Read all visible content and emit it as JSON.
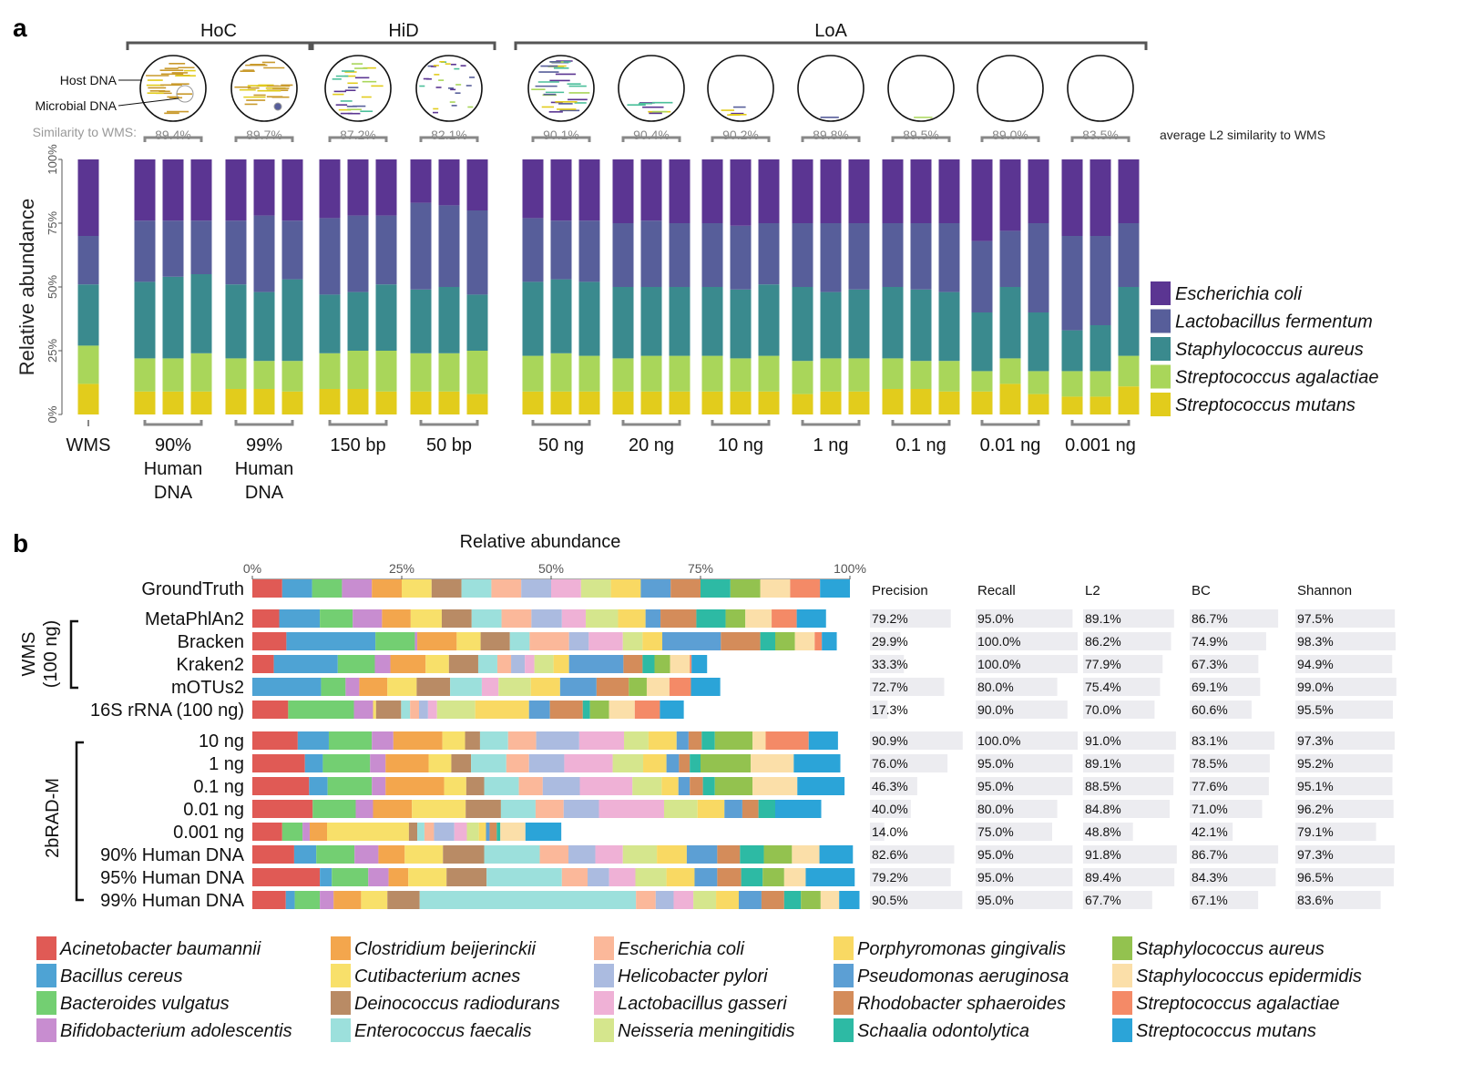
{
  "panel_a": {
    "letter": "a",
    "groups": [
      {
        "label": "HoC",
        "first": 1,
        "last": 2
      },
      {
        "label": "HiD",
        "first": 3,
        "last": 4
      },
      {
        "label": "LoA",
        "first": 5,
        "last": 11
      }
    ],
    "host_label": "Host DNA",
    "microbial_label": "Microbial DNA",
    "similarity_label": "Similarity to WMS:",
    "similarity_note": "average L2 similarity to WMS",
    "similarities": [
      "89.4%",
      "89.7%",
      "87.2%",
      "82.1%",
      "90.1%",
      "90.4%",
      "90.2%",
      "89.8%",
      "89.5%",
      "89.0%",
      "83.5%"
    ],
    "colors": {
      "Escherichia coli": "#5b3592",
      "Lactobacillus fermentum": "#575e9a",
      "Staphylococcus aureus": "#3a8a8e",
      "Streptococcus agalactiae": "#a9d65a",
      "Streptococcus mutans": "#e2cc1c"
    },
    "read_colors": [
      "#c99a2c",
      "#e2cc1c",
      "#5b3592",
      "#575e9a",
      "#4bbf9a",
      "#a9d65a"
    ]
  },
  "panel_b": {
    "letter": "b",
    "x_title": "Relative abundance",
    "x_ticks": [
      "0%",
      "25%",
      "50%",
      "75%",
      "100%"
    ],
    "metric_headers": [
      "Precision",
      "Recall",
      "L2",
      "BC",
      "Shannon"
    ],
    "bracket_wms_l1": "WMS",
    "bracket_wms_l2": "(100 ng)",
    "bracket_2brad": "2bRAD-M",
    "colors": [
      "#e05a55",
      "#4ea3d4",
      "#73cf72",
      "#c88dd0",
      "#f3a64d",
      "#f8e06a",
      "#b98b65",
      "#9ce0dc",
      "#fbb89a",
      "#abbbe0",
      "#efb1d6",
      "#d5e68d",
      "#f9d963",
      "#5c9fd4",
      "#d48c5a",
      "#2dbaa4",
      "#93c24f",
      "#fbdfa9",
      "#f48a67",
      "#2ba4d8"
    ]
  },
  "chart_data": [
    {
      "type": "bar",
      "stacked": true,
      "ylabel": "Relative abundance",
      "ylim": [
        0,
        100
      ],
      "y_ticks": [
        "0%",
        "25%",
        "50%",
        "75%",
        "100%"
      ],
      "categories": [
        "WMS",
        "90% Human DNA",
        "99% Human DNA",
        "150 bp",
        "50 bp",
        "50 ng",
        "20 ng",
        "10 ng",
        "1 ng",
        "0.1 ng",
        "0.01 ng",
        "0.001 ng"
      ],
      "category_lines": [
        [
          "WMS"
        ],
        [
          "90%",
          "Human",
          "DNA"
        ],
        [
          "99%",
          "Human",
          "DNA"
        ],
        [
          "150 bp"
        ],
        [
          "50 bp"
        ],
        [
          "50 ng"
        ],
        [
          "20 ng"
        ],
        [
          "10 ng"
        ],
        [
          "1 ng"
        ],
        [
          "0.1 ng"
        ],
        [
          "0.01 ng"
        ],
        [
          "0.001 ng"
        ]
      ],
      "legend": [
        "Escherichia coli",
        "Lactobacillus fermentum",
        "Staphylococcus aureus",
        "Streptococcus agalactiae",
        "Streptococcus mutans"
      ],
      "stack_order_bottom_to_top": [
        "Streptococcus mutans",
        "Streptococcus agalactiae",
        "Staphylococcus aureus",
        "Lactobacillus fermentum",
        "Escherichia coli"
      ],
      "replicates": [
        [
          [
            12,
            15,
            24,
            19,
            30
          ]
        ],
        [
          [
            9,
            13,
            30,
            24,
            24
          ],
          [
            9,
            13,
            32,
            22,
            24
          ],
          [
            9,
            15,
            31,
            21,
            24
          ]
        ],
        [
          [
            10,
            12,
            29,
            25,
            24
          ],
          [
            10,
            11,
            27,
            30,
            22
          ],
          [
            9,
            12,
            32,
            23,
            24
          ]
        ],
        [
          [
            10,
            14,
            23,
            30,
            23
          ],
          [
            10,
            15,
            23,
            30,
            22
          ],
          [
            9,
            16,
            26,
            27,
            22
          ]
        ],
        [
          [
            9,
            15,
            25,
            34,
            17
          ],
          [
            9,
            15,
            26,
            32,
            18
          ],
          [
            8,
            17,
            22,
            33,
            20
          ]
        ],
        [
          [
            9,
            14,
            29,
            25,
            23
          ],
          [
            9,
            15,
            29,
            23,
            24
          ],
          [
            9,
            14,
            29,
            24,
            24
          ]
        ],
        [
          [
            9,
            13,
            28,
            25,
            25
          ],
          [
            9,
            14,
            27,
            26,
            24
          ],
          [
            9,
            14,
            27,
            25,
            25
          ]
        ],
        [
          [
            9,
            14,
            27,
            25,
            25
          ],
          [
            9,
            13,
            27,
            25,
            26
          ],
          [
            9,
            14,
            28,
            24,
            25
          ]
        ],
        [
          [
            8,
            13,
            29,
            25,
            25
          ],
          [
            9,
            13,
            26,
            27,
            25
          ],
          [
            9,
            13,
            27,
            26,
            25
          ]
        ],
        [
          [
            10,
            12,
            28,
            25,
            25
          ],
          [
            10,
            11,
            28,
            26,
            25
          ],
          [
            9,
            12,
            27,
            27,
            25
          ]
        ],
        [
          [
            9,
            8,
            23,
            28,
            32
          ],
          [
            12,
            10,
            28,
            22,
            28
          ],
          [
            8,
            9,
            23,
            35,
            25
          ]
        ],
        [
          [
            7,
            10,
            16,
            37,
            30
          ],
          [
            7,
            10,
            18,
            35,
            30
          ],
          [
            11,
            12,
            27,
            25,
            25
          ]
        ]
      ]
    },
    {
      "type": "bar",
      "stacked": true,
      "orientation": "horizontal",
      "xlabel": "Relative abundance",
      "xlim": [
        0,
        100
      ],
      "species": [
        "Acinetobacter baumannii",
        "Bacillus cereus",
        "Bacteroides vulgatus",
        "Bifidobacterium adolescentis",
        "Clostridium beijerinckii",
        "Cutibacterium acnes",
        "Deinococcus radiodurans",
        "Enterococcus faecalis",
        "Escherichia coli",
        "Helicobacter pylori",
        "Lactobacillus gasseri",
        "Neisseria meningitidis",
        "Porphyromonas gingivalis",
        "Pseudomonas aeruginosa",
        "Rhodobacter sphaeroides",
        "Schaalia odontolytica",
        "Staphylococcus aureus",
        "Staphylococcus epidermidis",
        "Streptococcus agalactiae",
        "Streptococcus mutans"
      ],
      "rows": [
        {
          "label": "GroundTruth",
          "metrics": null,
          "values": [
            5,
            5,
            5,
            5,
            5,
            5,
            5,
            5,
            5,
            5,
            5,
            5,
            5,
            5,
            5,
            5,
            5,
            5,
            5,
            5
          ]
        },
        {
          "label": "MetaPhlAn2",
          "metrics": [
            "79.2%",
            "95.0%",
            "89.1%",
            "86.7%",
            "97.5%"
          ],
          "values": [
            4.5,
            6.8,
            5.5,
            4.9,
            4.8,
            5.2,
            5.0,
            5.0,
            5.0,
            5.1,
            4.0,
            5.4,
            4.6,
            2.5,
            6.0,
            4.9,
            3.3,
            4.4,
            4.2,
            4.9
          ]
        },
        {
          "label": "Bracken",
          "metrics": [
            "29.9%",
            "100.0%",
            "86.2%",
            "74.9%",
            "98.3%"
          ],
          "values": [
            5.7,
            14.9,
            6.6,
            0.4,
            6.6,
            4.0,
            4.9,
            3.3,
            6.6,
            3.3,
            5.7,
            3.3,
            3.3,
            9.8,
            6.6,
            2.5,
            3.3,
            3.3,
            1.2,
            2.5
          ]
        },
        {
          "label": "Kraken2",
          "metrics": [
            "33.3%",
            "100.0%",
            "77.9%",
            "67.3%",
            "94.9%"
          ],
          "values": [
            3.6,
            10.7,
            6.2,
            2.6,
            5.9,
            3.9,
            4.9,
            3.2,
            2.3,
            2.3,
            1.6,
            3.2,
            2.6,
            9.1,
            3.2,
            2.0,
            2.6,
            3.3,
            0.3,
            2.6
          ]
        },
        {
          "label": "mOTUs2",
          "metrics": [
            "72.7%",
            "80.0%",
            "75.4%",
            "69.1%",
            "99.0%"
          ],
          "values": [
            0,
            11.5,
            4.1,
            2.3,
            4.7,
            4.9,
            5.6,
            5.3,
            0,
            0,
            2.8,
            5.4,
            4.9,
            6.1,
            5.4,
            0,
            3.0,
            3.8,
            3.6,
            4.9
          ]
        },
        {
          "label": "16S rRNA (100 ng)",
          "metrics": [
            "17.3%",
            "90.0%",
            "70.0%",
            "60.6%",
            "95.5%"
          ],
          "values": [
            6.0,
            0,
            11.0,
            3.2,
            0,
            0.5,
            4.2,
            1.5,
            1.5,
            1.5,
            1.5,
            6.4,
            9.0,
            3.5,
            5.5,
            1.2,
            3.2,
            4.3,
            4.2,
            4.0
          ]
        },
        {
          "label": "10 ng",
          "metrics": [
            "90.9%",
            "100.0%",
            "91.0%",
            "83.1%",
            "97.3%"
          ],
          "values": [
            7.6,
            5.2,
            7.2,
            3.6,
            8.2,
            3.8,
            2.5,
            4.7,
            4.7,
            7.2,
            7.5,
            4.1,
            4.7,
            2.0,
            2.2,
            2.2,
            6.3,
            2.2,
            7.2,
            4.9
          ]
        },
        {
          "label": "1 ng",
          "metrics": [
            "76.0%",
            "95.0%",
            "89.1%",
            "78.5%",
            "95.2%"
          ],
          "values": [
            8.8,
            3.0,
            7.9,
            2.6,
            7.2,
            3.8,
            3.3,
            5.9,
            3.8,
            5.9,
            8.1,
            5.1,
            3.9,
            2.1,
            1.8,
            1.8,
            8.4,
            7.2,
            0,
            7.8
          ]
        },
        {
          "label": "0.1 ng",
          "metrics": [
            "46.3%",
            "95.0%",
            "88.5%",
            "77.6%",
            "95.1%"
          ],
          "values": [
            9.5,
            3.1,
            7.4,
            2.3,
            9.8,
            3.7,
            3.0,
            5.8,
            4.0,
            6.2,
            8.8,
            4.9,
            2.8,
            1.9,
            2.2,
            2.0,
            6.3,
            7.5,
            0,
            7.9
          ]
        },
        {
          "label": "0.01 ng",
          "metrics": [
            "40.0%",
            "80.0%",
            "84.8%",
            "71.0%",
            "96.2%"
          ],
          "values": [
            10.1,
            0,
            7.2,
            2.9,
            6.5,
            9.0,
            5.9,
            5.8,
            4.7,
            5.9,
            10.9,
            5.6,
            4.5,
            3.0,
            2.7,
            2.8,
            0,
            0,
            0,
            7.7
          ]
        },
        {
          "label": "0.001 ng",
          "metrics": [
            "14.0%",
            "75.0%",
            "48.8%",
            "42.1%",
            "79.1%"
          ],
          "values": [
            5.0,
            0,
            3.4,
            1.2,
            2.9,
            13.7,
            1.4,
            1.2,
            1.6,
            3.4,
            2.1,
            2.0,
            1.2,
            0.6,
            1.2,
            0.6,
            0,
            4.2,
            0,
            6.0
          ]
        },
        {
          "label": "90% Human DNA",
          "metrics": [
            "82.6%",
            "95.0%",
            "91.8%",
            "86.7%",
            "97.3%"
          ],
          "values": [
            7.0,
            3.7,
            6.4,
            4.0,
            4.4,
            6.4,
            6.9,
            9.3,
            4.8,
            4.5,
            4.6,
            5.7,
            5.0,
            5.1,
            3.8,
            4.0,
            4.7,
            4.6,
            0,
            5.6
          ]
        },
        {
          "label": "95% Human DNA",
          "metrics": [
            "79.2%",
            "95.0%",
            "89.4%",
            "84.3%",
            "96.5%"
          ],
          "values": [
            11.3,
            2.0,
            6.1,
            3.4,
            3.3,
            6.4,
            6.7,
            12.6,
            4.3,
            3.6,
            4.4,
            5.2,
            4.7,
            3.8,
            4.0,
            3.6,
            3.6,
            3.6,
            0,
            8.2
          ]
        },
        {
          "label": "99% Human DNA",
          "metrics": [
            "90.5%",
            "95.0%",
            "67.7%",
            "67.1%",
            "83.6%"
          ],
          "values": [
            5.6,
            1.5,
            4.2,
            2.3,
            4.6,
            4.4,
            5.4,
            36.2,
            3.3,
            3.0,
            3.3,
            3.8,
            3.8,
            3.8,
            3.8,
            2.8,
            3.3,
            3.1,
            0,
            3.4
          ]
        }
      ]
    }
  ]
}
